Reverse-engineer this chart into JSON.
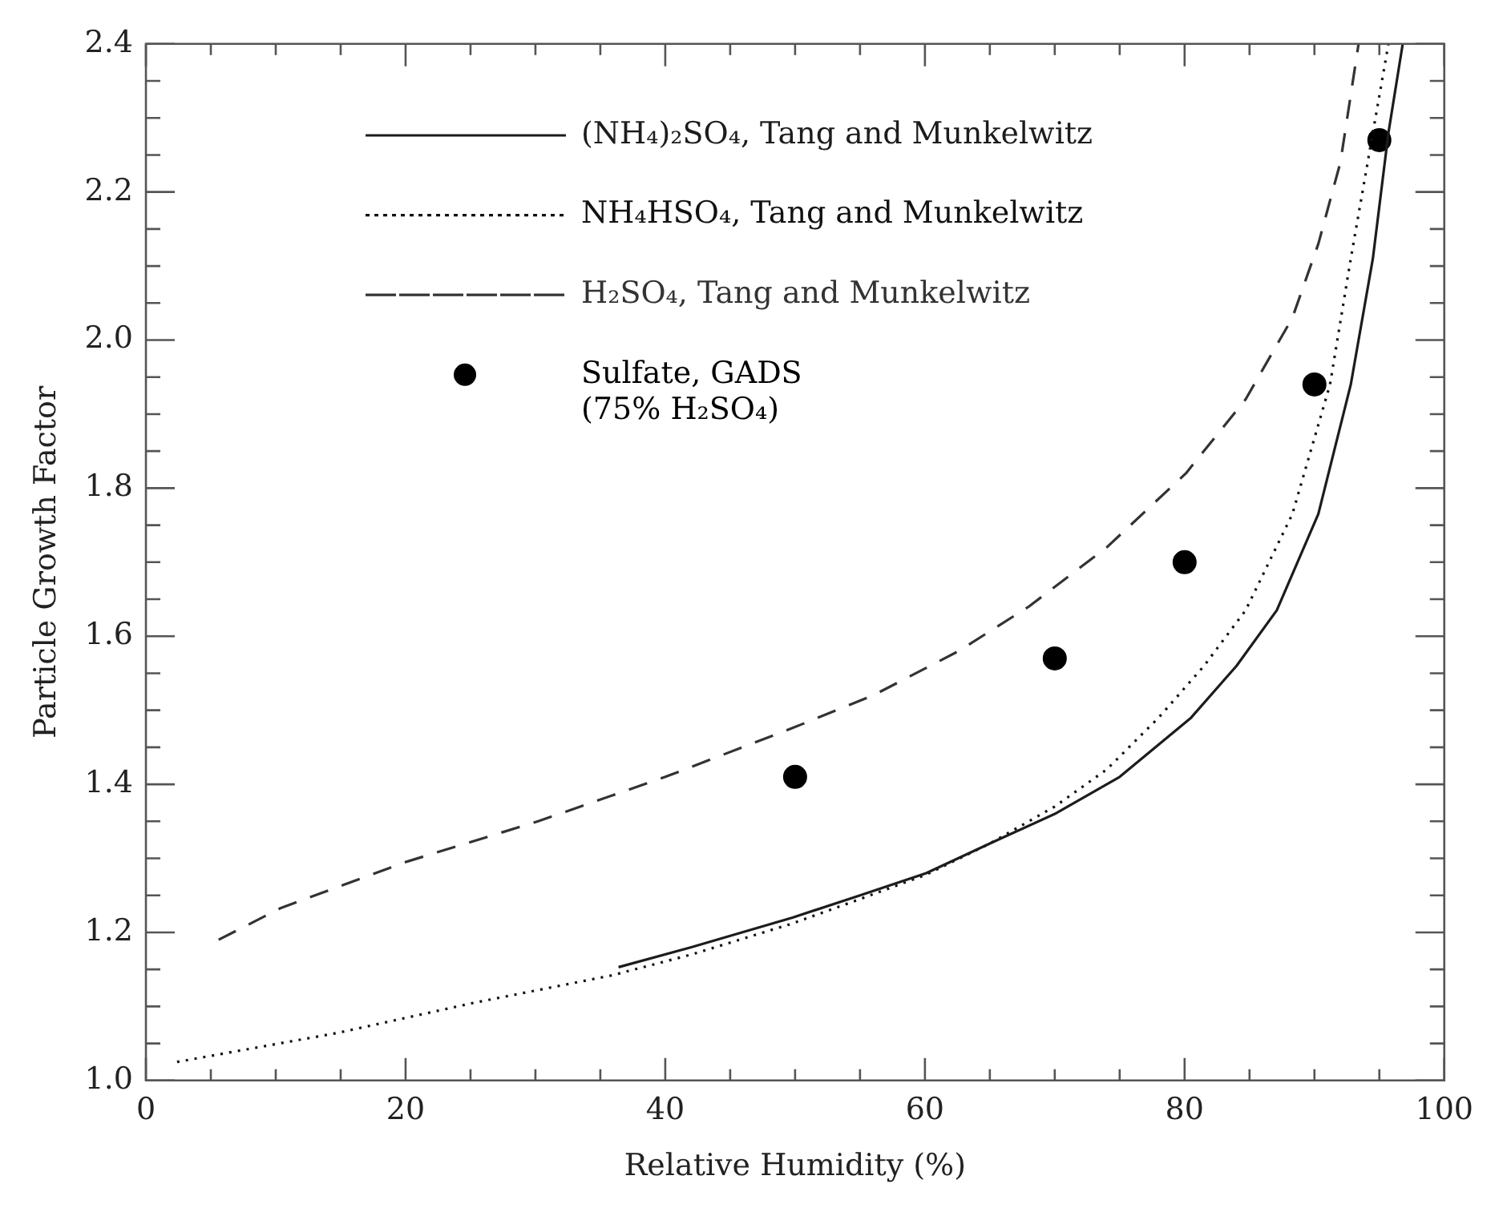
{
  "chart_data": {
    "type": "line",
    "xlabel": "Relative Humidity (%)",
    "ylabel": "Particle Growth Factor",
    "xlim": [
      0,
      100
    ],
    "ylim": [
      1.0,
      2.4
    ],
    "xticks": [
      0,
      {
        "value": 5,
        "label": null
      },
      {
        "value": 10,
        "label": null
      },
      {
        "value": 15,
        "label": null
      },
      20,
      {
        "value": 25,
        "label": null
      },
      {
        "value": 30,
        "label": null
      },
      {
        "value": 35,
        "label": null
      },
      40,
      {
        "value": 45,
        "label": null
      },
      {
        "value": 50,
        "label": null
      },
      {
        "value": 55,
        "label": null
      },
      60,
      {
        "value": 65,
        "label": null
      },
      {
        "value": 70,
        "label": null
      },
      {
        "value": 75,
        "label": null
      },
      80,
      {
        "value": 85,
        "label": null
      },
      {
        "value": 90,
        "label": null
      },
      {
        "value": 95,
        "label": null
      },
      100
    ],
    "yticks": [
      {
        "value": 1.0,
        "label": "1.0"
      },
      {
        "value": 1.05,
        "label": null
      },
      {
        "value": 1.1,
        "label": null
      },
      {
        "value": 1.15,
        "label": null
      },
      {
        "value": 1.2,
        "label": "1.2"
      },
      {
        "value": 1.25,
        "label": null
      },
      {
        "value": 1.3,
        "label": null
      },
      {
        "value": 1.35,
        "label": null
      },
      {
        "value": 1.4,
        "label": "1.4"
      },
      {
        "value": 1.45,
        "label": null
      },
      {
        "value": 1.5,
        "label": null
      },
      {
        "value": 1.55,
        "label": null
      },
      {
        "value": 1.6,
        "label": "1.6"
      },
      {
        "value": 1.65,
        "label": null
      },
      {
        "value": 1.7,
        "label": null
      },
      {
        "value": 1.75,
        "label": null
      },
      {
        "value": 1.8,
        "label": "1.8"
      },
      {
        "value": 1.85,
        "label": null
      },
      {
        "value": 1.9,
        "label": null
      },
      {
        "value": 1.95,
        "label": null
      },
      {
        "value": 2.0,
        "label": "2.0"
      },
      {
        "value": 2.05,
        "label": null
      },
      {
        "value": 2.1,
        "label": null
      },
      {
        "value": 2.15,
        "label": null
      },
      {
        "value": 2.2,
        "label": "2.2"
      },
      {
        "value": 2.25,
        "label": null
      },
      {
        "value": 2.3,
        "label": null
      },
      {
        "value": 2.35,
        "label": null
      },
      {
        "value": 2.4,
        "label": "2.4"
      }
    ],
    "grid": false,
    "legend": "top left",
    "series": [
      {
        "name": "(NH₄)₂SO₄, Tang and Munkelwitz",
        "line_style": "solid",
        "marker": "none",
        "color": "#1c1c1c",
        "x": [
          36.4,
          42,
          49.8,
          55,
          60.1,
          65,
          70,
          75,
          80.5,
          84,
          87.1,
          90.3,
          92.8,
          94.5,
          95.7,
          96.8
        ],
        "values": [
          1.153,
          1.18,
          1.22,
          1.25,
          1.28,
          1.32,
          1.36,
          1.41,
          1.49,
          1.56,
          1.635,
          1.765,
          1.94,
          2.11,
          2.28,
          2.4
        ]
      },
      {
        "name": "NH₄HSO₄, Tang and Munkelwitz",
        "line_style": "dotted",
        "marker": "none",
        "color": "#111111",
        "x": [
          2.4,
          14.7,
          25.3,
          35.9,
          42,
          49.8,
          55,
          60.1,
          65,
          70,
          74,
          78,
          81.5,
          84.7,
          88.3,
          91.2,
          92.8,
          94.5,
          95.7
        ],
        "values": [
          1.025,
          1.064,
          1.105,
          1.142,
          1.17,
          1.212,
          1.245,
          1.278,
          1.32,
          1.37,
          1.42,
          1.49,
          1.56,
          1.635,
          1.765,
          1.94,
          2.11,
          2.28,
          2.4
        ]
      },
      {
        "name": "H₂SO₄, Tang and Munkelwitz",
        "line_style": "dashed",
        "marker": "none",
        "color": "#333333",
        "x": [
          5.6,
          10.4,
          20,
          30.2,
          40,
          49.8,
          56,
          62.6,
          68,
          74,
          80.1,
          84.7,
          88.3,
          90.3,
          92,
          93.4
        ],
        "values": [
          1.19,
          1.233,
          1.295,
          1.35,
          1.41,
          1.476,
          1.52,
          1.58,
          1.64,
          1.72,
          1.82,
          1.92,
          2.03,
          2.13,
          2.24,
          2.4
        ]
      },
      {
        "name": "Sulfate, GADS\n(75% H₂SO₄)",
        "type": "scatter",
        "marker": "circle",
        "color": "#000000",
        "x": [
          50,
          70,
          80,
          90,
          95
        ],
        "values": [
          1.41,
          1.57,
          1.7,
          1.94,
          2.27
        ]
      }
    ]
  }
}
